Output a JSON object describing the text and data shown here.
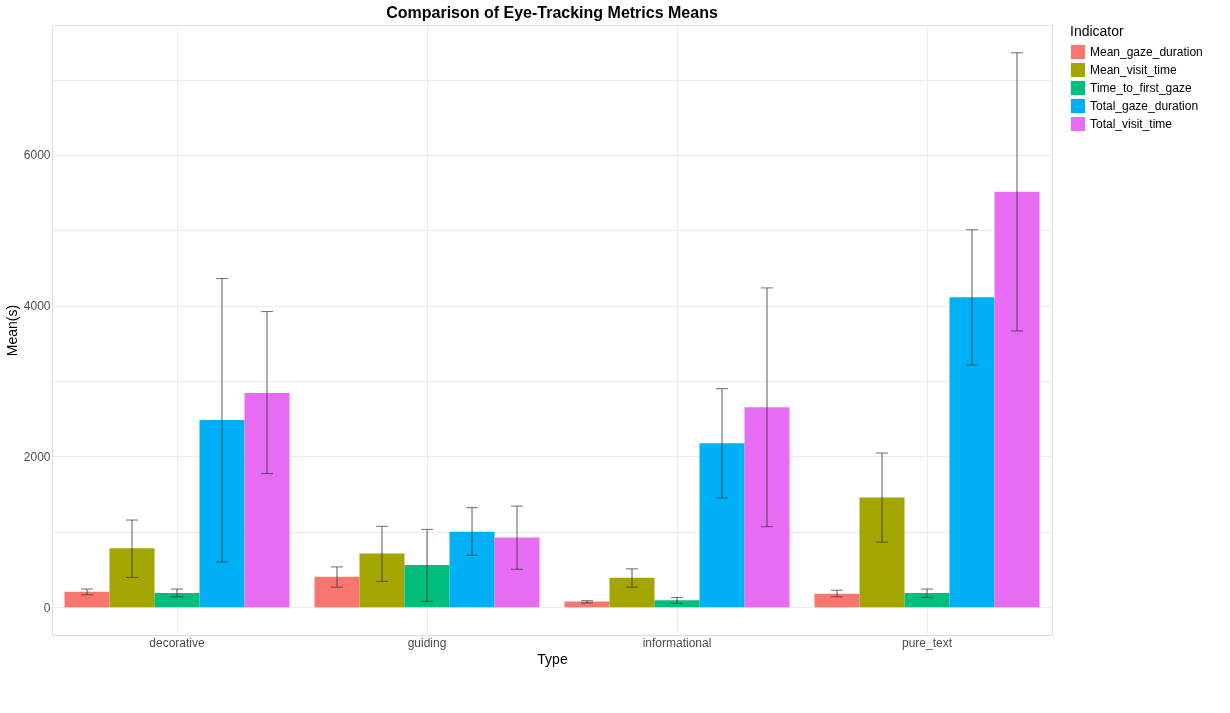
{
  "chart_data": {
    "type": "bar",
    "title": "Comparison of Eye-Tracking Metrics Means",
    "xlabel": "Type",
    "ylabel": "Mean(s)",
    "legend_title": "Indicator",
    "legend": "right",
    "grid": true,
    "categories": [
      "decorative",
      "guiding",
      "informational",
      "pure_text"
    ],
    "ylim": [
      -368,
      7723
    ],
    "yticks": [
      0,
      {
        "value": 1000,
        "label": null
      },
      2000,
      {
        "value": 3000,
        "label": null
      },
      4000,
      {
        "value": 5000,
        "label": null
      },
      6000,
      {
        "value": 7000,
        "label": null
      }
    ],
    "series": [
      {
        "name": "Mean_gaze_duration",
        "color": "#f8766d",
        "values": [
          206,
          406,
          77,
          180
        ],
        "errors": [
          [
            165,
            242
          ],
          [
            267,
            535
          ],
          [
            57,
            87
          ],
          [
            139,
            226
          ]
        ]
      },
      {
        "name": "Mean_visit_time",
        "color": "#a3a500",
        "values": [
          781,
          714,
          391,
          1455
        ],
        "errors": [
          [
            396,
            1157
          ],
          [
            344,
            1074
          ],
          [
            267,
            509
          ],
          [
            864,
            2046
          ]
        ]
      },
      {
        "name": "Time_to_first_gaze",
        "color": "#00bf7d",
        "values": [
          190,
          560,
          93,
          190
        ],
        "errors": [
          [
            139,
            242
          ],
          [
            77,
            1033
          ],
          [
            51,
            129
          ],
          [
            129,
            242
          ]
        ]
      },
      {
        "name": "Total_gaze_duration",
        "color": "#00b0f6",
        "values": [
          2483,
          1002,
          2174,
          4112
        ],
        "errors": [
          [
            601,
            4360
          ],
          [
            689,
            1321
          ],
          [
            1450,
            2899
          ],
          [
            3213,
            5007
          ]
        ]
      },
      {
        "name": "Total_visit_time",
        "color": "#e76bf3",
        "values": [
          2843,
          925,
          2652,
          5510
        ],
        "errors": [
          [
            1773,
            3922
          ],
          [
            504,
            1342
          ],
          [
            1069,
            4236
          ],
          [
            3665,
            7355
          ]
        ]
      }
    ]
  }
}
